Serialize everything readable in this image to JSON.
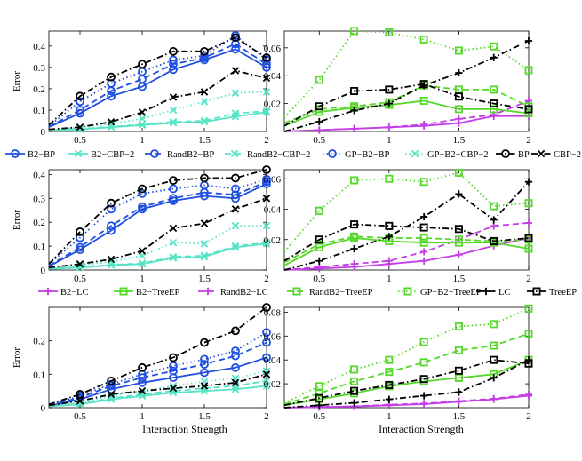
{
  "figure": {
    "xlabel": "Interaction Strength",
    "ylabel": "Error"
  },
  "legends": [
    {
      "entries": [
        {
          "label": "B2−BP",
          "series": "B2-BP"
        },
        {
          "label": "B2−CBP−2",
          "series": "B2-CBP-2"
        },
        {
          "label": "RandB2−BP",
          "series": "RandB2-BP"
        },
        {
          "label": "RandB2−CBP−2",
          "series": "RandB2-CBP-2"
        },
        {
          "label": "GP−B2−BP",
          "series": "GP-B2-BP"
        },
        {
          "label": "GP−B2−CBP−2",
          "series": "GP-B2-CBP-2"
        },
        {
          "label": "BP",
          "series": "BP"
        },
        {
          "label": "CBP−2",
          "series": "CBP-2"
        }
      ]
    },
    {
      "entries": [
        {
          "label": "B2−LC",
          "series": "B2-LC"
        },
        {
          "label": "B2−TreeEP",
          "series": "B2-TreeEP"
        },
        {
          "label": "RandB2−LC",
          "series": "RandB2-LC"
        },
        {
          "label": "RandB2−TreeEP",
          "series": "RandB2-TreeEP"
        },
        {
          "label": "GP−B2−TreeEP",
          "series": "GP-B2-TreeEP"
        },
        {
          "label": "LC",
          "series": "LC"
        },
        {
          "label": "TreeEP",
          "series": "TreeEP"
        }
      ]
    }
  ],
  "series_styles": {
    "B2-BP": {
      "color": "#1f4fe0",
      "dash": "solid",
      "marker": "circle"
    },
    "RandB2-BP": {
      "color": "#1f4fe0",
      "dash": "dashed",
      "marker": "circle"
    },
    "GP-B2-BP": {
      "color": "#1f4fe0",
      "dash": "dotted",
      "marker": "circle"
    },
    "B2-CBP-2": {
      "color": "#56e4c6",
      "dash": "solid",
      "marker": "x"
    },
    "RandB2-CBP-2": {
      "color": "#56e4c6",
      "dash": "dashed",
      "marker": "x"
    },
    "GP-B2-CBP-2": {
      "color": "#56e4c6",
      "dash": "dotted",
      "marker": "x"
    },
    "BP": {
      "color": "#000000",
      "dash": "dashdot",
      "marker": "circle"
    },
    "CBP-2": {
      "color": "#000000",
      "dash": "dashdot",
      "marker": "x"
    },
    "B2-LC": {
      "color": "#c43ee8",
      "dash": "solid",
      "marker": "plus"
    },
    "RandB2-LC": {
      "color": "#c43ee8",
      "dash": "dashed",
      "marker": "plus"
    },
    "B2-TreeEP": {
      "color": "#55d82a",
      "dash": "solid",
      "marker": "square"
    },
    "RandB2-TreeEP": {
      "color": "#55d82a",
      "dash": "dashed",
      "marker": "square"
    },
    "GP-B2-TreeEP": {
      "color": "#55d82a",
      "dash": "dotted",
      "marker": "square"
    },
    "LC": {
      "color": "#000000",
      "dash": "dashdot",
      "marker": "plus"
    },
    "TreeEP": {
      "color": "#000000",
      "dash": "dashdot",
      "marker": "square"
    }
  },
  "chart_data": [
    {
      "type": "line",
      "panel": "row1-left",
      "x": [
        0.25,
        0.5,
        0.75,
        1.0,
        1.25,
        1.5,
        1.75,
        2.0
      ],
      "xlim": [
        0.25,
        2.0
      ],
      "ylim": [
        0,
        0.47
      ],
      "xticks": [
        0.5,
        1,
        1.5,
        2
      ],
      "yticks": [
        0,
        0.1,
        0.2,
        0.3,
        0.4
      ],
      "yticklabels": [
        "0",
        "0.1",
        "0.2",
        "0.3",
        "0.4"
      ],
      "ylabel": "Error",
      "xlabel": "",
      "series": [
        {
          "name": "B2-BP",
          "values": [
            0.02,
            0.085,
            0.165,
            0.21,
            0.29,
            0.335,
            0.385,
            0.3
          ]
        },
        {
          "name": "RandB2-BP",
          "values": [
            0.022,
            0.1,
            0.19,
            0.245,
            0.315,
            0.345,
            0.41,
            0.315
          ]
        },
        {
          "name": "GP-B2-BP",
          "values": [
            0.025,
            0.14,
            0.225,
            0.28,
            0.335,
            0.355,
            0.45,
            0.335
          ]
        },
        {
          "name": "B2-CBP-2",
          "values": [
            0.005,
            0.01,
            0.02,
            0.03,
            0.04,
            0.045,
            0.07,
            0.09
          ]
        },
        {
          "name": "RandB2-CBP-2",
          "values": [
            0.005,
            0.012,
            0.022,
            0.033,
            0.045,
            0.05,
            0.085,
            0.095
          ]
        },
        {
          "name": "GP-B2-CBP-2",
          "values": [
            0.005,
            0.02,
            0.035,
            0.06,
            0.1,
            0.14,
            0.18,
            0.185
          ]
        },
        {
          "name": "BP",
          "values": [
            0.03,
            0.165,
            0.255,
            0.315,
            0.375,
            0.375,
            0.44,
            0.345
          ]
        },
        {
          "name": "CBP-2",
          "values": [
            0.01,
            0.02,
            0.045,
            0.09,
            0.16,
            0.185,
            0.285,
            0.25
          ]
        }
      ]
    },
    {
      "type": "line",
      "panel": "row1-right",
      "x": [
        0.25,
        0.5,
        0.75,
        1.0,
        1.25,
        1.5,
        1.75,
        2.0
      ],
      "xlim": [
        0.25,
        2.0
      ],
      "ylim": [
        0,
        0.072
      ],
      "xticks": [
        0.5,
        1,
        1.5,
        2
      ],
      "yticks": [
        0.02,
        0.04,
        0.06
      ],
      "yticklabels": [
        "0.02",
        "0.04",
        "0.06"
      ],
      "ylabel": "",
      "xlabel": "",
      "series": [
        {
          "name": "B2-LC",
          "values": [
            0.0,
            0.001,
            0.002,
            0.003,
            0.004,
            0.006,
            0.011,
            0.011
          ]
        },
        {
          "name": "RandB2-LC",
          "values": [
            0.0,
            0.001,
            0.002,
            0.003,
            0.005,
            0.009,
            0.012,
            0.022
          ]
        },
        {
          "name": "B2-TreeEP",
          "values": [
            0.004,
            0.014,
            0.017,
            0.019,
            0.022,
            0.016,
            0.016,
            0.013
          ]
        },
        {
          "name": "RandB2-TreeEP",
          "values": [
            0.006,
            0.016,
            0.018,
            0.021,
            0.033,
            0.03,
            0.03,
            0.018
          ]
        },
        {
          "name": "GP-B2-TreeEP",
          "values": [
            0.01,
            0.037,
            0.072,
            0.071,
            0.066,
            0.058,
            0.061,
            0.044
          ]
        },
        {
          "name": "LC",
          "values": [
            0.0,
            0.007,
            0.015,
            0.02,
            0.033,
            0.042,
            0.053,
            0.065
          ]
        },
        {
          "name": "TreeEP",
          "values": [
            0.004,
            0.018,
            0.029,
            0.03,
            0.034,
            0.025,
            0.02,
            0.016
          ]
        }
      ]
    },
    {
      "type": "line",
      "panel": "row2-left",
      "x": [
        0.25,
        0.5,
        0.75,
        1.0,
        1.25,
        1.5,
        1.75,
        2.0
      ],
      "xlim": [
        0.25,
        2.0
      ],
      "ylim": [
        0,
        0.42
      ],
      "xticks": [
        0.5,
        1,
        1.5,
        2
      ],
      "yticks": [
        0,
        0.1,
        0.2,
        0.3,
        0.4
      ],
      "yticklabels": [
        "0",
        "0.1",
        "0.2",
        "0.3",
        "0.4"
      ],
      "ylabel": "Error",
      "xlabel": "",
      "series": [
        {
          "name": "B2-BP",
          "values": [
            0.015,
            0.085,
            0.165,
            0.255,
            0.29,
            0.31,
            0.3,
            0.36
          ]
        },
        {
          "name": "RandB2-BP",
          "values": [
            0.018,
            0.095,
            0.185,
            0.265,
            0.3,
            0.325,
            0.315,
            0.37
          ]
        },
        {
          "name": "GP-B2-BP",
          "values": [
            0.025,
            0.135,
            0.255,
            0.32,
            0.34,
            0.355,
            0.34,
            0.38
          ]
        },
        {
          "name": "B2-CBP-2",
          "values": [
            0.005,
            0.01,
            0.02,
            0.025,
            0.05,
            0.055,
            0.095,
            0.11
          ]
        },
        {
          "name": "RandB2-CBP-2",
          "values": [
            0.005,
            0.012,
            0.022,
            0.028,
            0.055,
            0.06,
            0.1,
            0.115
          ]
        },
        {
          "name": "GP-B2-CBP-2",
          "values": [
            0.005,
            0.02,
            0.035,
            0.06,
            0.115,
            0.11,
            0.185,
            0.185
          ]
        },
        {
          "name": "BP",
          "values": [
            0.025,
            0.16,
            0.28,
            0.34,
            0.375,
            0.385,
            0.385,
            0.42
          ]
        },
        {
          "name": "CBP-2",
          "values": [
            0.01,
            0.025,
            0.045,
            0.08,
            0.175,
            0.195,
            0.255,
            0.3
          ]
        }
      ]
    },
    {
      "type": "line",
      "panel": "row2-right",
      "x": [
        0.25,
        0.5,
        0.75,
        1.0,
        1.25,
        1.5,
        1.75,
        2.0
      ],
      "xlim": [
        0.25,
        2.0
      ],
      "ylim": [
        0,
        0.066
      ],
      "xticks": [
        0.5,
        1,
        1.5,
        2
      ],
      "yticks": [
        0.02,
        0.04,
        0.06
      ],
      "yticklabels": [
        "0.02",
        "0.04",
        "0.06"
      ],
      "ylabel": "",
      "xlabel": "",
      "series": [
        {
          "name": "B2-LC",
          "values": [
            0.0,
            0.001,
            0.002,
            0.004,
            0.006,
            0.01,
            0.016,
            0.021
          ]
        },
        {
          "name": "RandB2-LC",
          "values": [
            0.0,
            0.002,
            0.004,
            0.006,
            0.012,
            0.02,
            0.029,
            0.031
          ]
        },
        {
          "name": "B2-TreeEP",
          "values": [
            0.003,
            0.015,
            0.021,
            0.019,
            0.018,
            0.018,
            0.018,
            0.014
          ]
        },
        {
          "name": "RandB2-TreeEP",
          "values": [
            0.005,
            0.017,
            0.022,
            0.021,
            0.021,
            0.02,
            0.019,
            0.02
          ]
        },
        {
          "name": "GP-B2-TreeEP",
          "values": [
            0.012,
            0.039,
            0.059,
            0.06,
            0.058,
            0.064,
            0.042,
            0.044
          ]
        },
        {
          "name": "LC",
          "values": [
            0.0,
            0.006,
            0.014,
            0.022,
            0.035,
            0.05,
            0.033,
            0.058
          ]
        },
        {
          "name": "TreeEP",
          "values": [
            0.006,
            0.02,
            0.03,
            0.029,
            0.028,
            0.027,
            0.019,
            0.021
          ]
        }
      ]
    },
    {
      "type": "line",
      "panel": "row3-left",
      "x": [
        0.25,
        0.5,
        0.75,
        1.0,
        1.25,
        1.5,
        1.75,
        2.0
      ],
      "xlim": [
        0.25,
        2.0
      ],
      "ylim": [
        0,
        0.3
      ],
      "xticks": [
        0.5,
        1,
        1.5,
        2
      ],
      "yticks": [
        0,
        0.1,
        0.2
      ],
      "yticklabels": [
        "0",
        "0.1",
        "0.2"
      ],
      "ylabel": "Error",
      "xlabel": "Interaction Strength",
      "series": [
        {
          "name": "B2-BP",
          "values": [
            0.005,
            0.025,
            0.055,
            0.075,
            0.09,
            0.105,
            0.12,
            0.15
          ]
        },
        {
          "name": "RandB2-BP",
          "values": [
            0.007,
            0.03,
            0.065,
            0.09,
            0.11,
            0.13,
            0.155,
            0.195
          ]
        },
        {
          "name": "GP-B2-BP",
          "values": [
            0.008,
            0.035,
            0.07,
            0.1,
            0.125,
            0.145,
            0.17,
            0.225
          ]
        },
        {
          "name": "B2-CBP-2",
          "values": [
            0.004,
            0.01,
            0.025,
            0.035,
            0.045,
            0.05,
            0.055,
            0.065
          ]
        },
        {
          "name": "RandB2-CBP-2",
          "values": [
            0.004,
            0.012,
            0.028,
            0.04,
            0.05,
            0.058,
            0.065,
            0.08
          ]
        },
        {
          "name": "GP-B2-CBP-2",
          "values": [
            0.005,
            0.015,
            0.035,
            0.05,
            0.065,
            0.078,
            0.088,
            0.11
          ]
        },
        {
          "name": "BP",
          "values": [
            0.01,
            0.04,
            0.08,
            0.12,
            0.15,
            0.195,
            0.23,
            0.3
          ]
        },
        {
          "name": "CBP-2",
          "values": [
            0.007,
            0.02,
            0.04,
            0.05,
            0.058,
            0.065,
            0.075,
            0.1
          ]
        }
      ]
    },
    {
      "type": "line",
      "panel": "row3-right",
      "x": [
        0.25,
        0.5,
        0.75,
        1.0,
        1.25,
        1.5,
        1.75,
        2.0
      ],
      "xlim": [
        0.25,
        2.0
      ],
      "ylim": [
        0,
        0.084
      ],
      "xticks": [
        0.5,
        1,
        1.5,
        2
      ],
      "yticks": [
        0.02,
        0.04,
        0.06,
        0.08
      ],
      "yticklabels": [
        "0.02",
        "0.04",
        "0.06",
        "0.08"
      ],
      "ylabel": "",
      "xlabel": "Interaction Strength",
      "series": [
        {
          "name": "B2-LC",
          "values": [
            0.0,
            0.0005,
            0.001,
            0.002,
            0.003,
            0.005,
            0.007,
            0.01
          ]
        },
        {
          "name": "RandB2-LC",
          "values": [
            0.0,
            0.0006,
            0.0012,
            0.0025,
            0.0035,
            0.0055,
            0.0075,
            0.011
          ]
        },
        {
          "name": "B2-TreeEP",
          "values": [
            0.002,
            0.007,
            0.012,
            0.018,
            0.022,
            0.025,
            0.028,
            0.04
          ]
        },
        {
          "name": "RandB2-TreeEP",
          "values": [
            0.003,
            0.012,
            0.022,
            0.03,
            0.038,
            0.048,
            0.052,
            0.062
          ]
        },
        {
          "name": "GP-B2-TreeEP",
          "values": [
            0.004,
            0.018,
            0.032,
            0.04,
            0.055,
            0.068,
            0.07,
            0.083
          ]
        },
        {
          "name": "LC",
          "values": [
            0.0,
            0.002,
            0.004,
            0.007,
            0.01,
            0.013,
            0.025,
            0.04
          ]
        },
        {
          "name": "TreeEP",
          "values": [
            0.002,
            0.008,
            0.014,
            0.019,
            0.024,
            0.031,
            0.04,
            0.037
          ]
        }
      ]
    }
  ]
}
